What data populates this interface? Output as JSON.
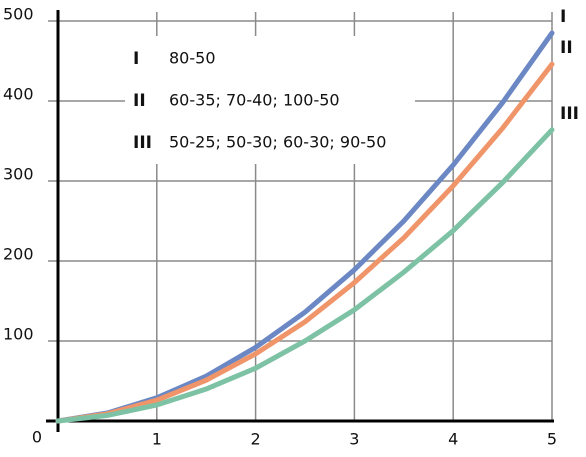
{
  "chart_data": {
    "type": "line",
    "x": [
      0,
      0.5,
      1,
      1.5,
      2,
      2.5,
      3,
      3.5,
      4,
      4.5,
      5
    ],
    "series": [
      {
        "name": "I",
        "label": "80-50",
        "color": "#6b88c4",
        "values": [
          0,
          10,
          29,
          56,
          92,
          136,
          189,
          250,
          320,
          398,
          485
        ]
      },
      {
        "name": "II",
        "label": "60-35; 70-40; 100-50",
        "color": "#f0956a",
        "values": [
          0,
          9,
          26,
          51,
          84,
          124,
          173,
          229,
          294,
          366,
          446
        ]
      },
      {
        "name": "III",
        "label": "50-25; 50-30; 60-30; 90-50",
        "color": "#7dc2a4",
        "values": [
          0,
          7,
          20,
          40,
          66,
          100,
          139,
          186,
          238,
          298,
          364
        ]
      }
    ],
    "xlim": [
      0,
      5
    ],
    "xticks": [
      1,
      2,
      3,
      4,
      5
    ],
    "ylim": [
      0,
      500
    ],
    "yticks": [
      0,
      100,
      200,
      300,
      400,
      500
    ],
    "grid": true
  }
}
